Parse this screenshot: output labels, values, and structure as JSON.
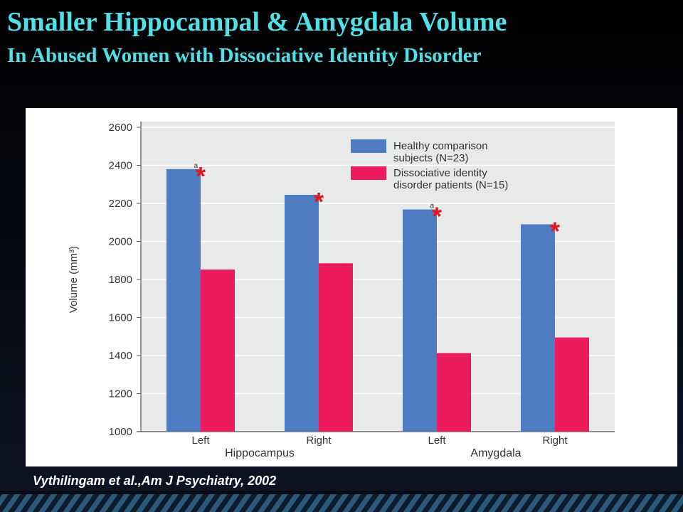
{
  "slide": {
    "title": "Smaller Hippocampal & Amygdala Volume",
    "subtitle": "In Abused Women with Dissociative Identity Disorder",
    "citation": "Vythilingam et al.,Am J Psychiatry, 2002"
  },
  "colors": {
    "title": "#4fe0e8",
    "plot_background": "#e8e9e9",
    "healthy": "#4d7cc3",
    "did": "#ec1b5e",
    "asterisk": "#e8141c"
  },
  "chart_data": {
    "type": "bar",
    "title": "",
    "xlabel": "",
    "ylabel": "Volume (mm³)",
    "ylim": [
      1000,
      2600
    ],
    "yticks": [
      1000,
      1200,
      1400,
      1600,
      1800,
      2000,
      2200,
      2400,
      2600
    ],
    "grid": true,
    "legend_position": "top-right",
    "categories": [
      "Left",
      "Right",
      "Left",
      "Right"
    ],
    "groups": [
      {
        "label": "Hippocampus",
        "categories": [
          0,
          1
        ]
      },
      {
        "label": "Amygdala",
        "categories": [
          2,
          3
        ]
      }
    ],
    "series": [
      {
        "name": "Healthy comparison subjects (N=23)",
        "legend_lines": [
          "Healthy comparison",
          "subjects (N=23)"
        ],
        "color": "#4d7cc3",
        "values": [
          2380,
          2245,
          2168,
          2090
        ]
      },
      {
        "name": "Dissociative identity disorder patients (N=15)",
        "legend_lines": [
          "Dissociative identity",
          "disorder patients (N=15)"
        ],
        "color": "#ec1b5e",
        "values": [
          1852,
          1885,
          1413,
          1495
        ]
      }
    ],
    "annotations": [
      {
        "category": 0,
        "superscript": "a",
        "marker": "*"
      },
      {
        "category": 1,
        "superscript": "",
        "marker": "*"
      },
      {
        "category": 2,
        "superscript": "a",
        "marker": "*"
      },
      {
        "category": 3,
        "superscript": "",
        "marker": "*"
      }
    ]
  }
}
